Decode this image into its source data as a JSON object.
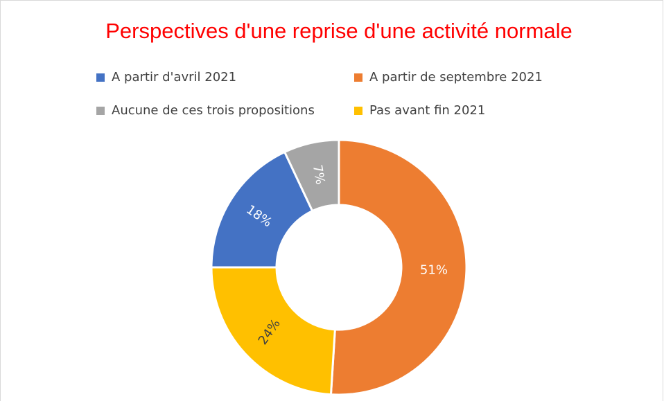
{
  "chart_data": {
    "type": "donut",
    "title": "Perspectives d'une reprise d'une activité normale",
    "categories": [
      "A partir d'avril 2021",
      "A partir de septembre 2021",
      "Aucune de ces trois propositions",
      "Pas avant fin 2021"
    ],
    "values": [
      18,
      51,
      7,
      24
    ],
    "value_labels": [
      "18%",
      "51%",
      "7%",
      "24%"
    ],
    "colors": [
      "#4472c4",
      "#ed7d31",
      "#a5a5a5",
      "#ffc000"
    ],
    "legend": "top"
  }
}
